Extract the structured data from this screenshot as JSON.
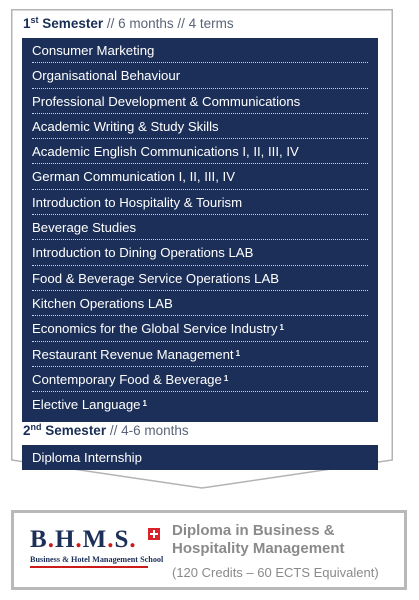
{
  "semester1": {
    "num": "1",
    "ord": "st",
    "word": "Semester",
    "meta": "// 6 months // 4 terms",
    "courses": [
      {
        "name": "Consumer Marketing",
        "note": ""
      },
      {
        "name": "Organisational Behaviour",
        "note": ""
      },
      {
        "name": "Professional Development & Communications",
        "note": ""
      },
      {
        "name": "Academic Writing & Study Skills",
        "note": ""
      },
      {
        "name": "Academic English Communications I, II, III, IV",
        "note": ""
      },
      {
        "name": "German Communication I, II, III, IV",
        "note": ""
      },
      {
        "name": "Introduction to Hospitality & Tourism",
        "note": ""
      },
      {
        "name": "Beverage Studies",
        "note": ""
      },
      {
        "name": "Introduction to Dining Operations LAB",
        "note": ""
      },
      {
        "name": "Food & Beverage Service Operations LAB",
        "note": ""
      },
      {
        "name": "Kitchen Operations LAB",
        "note": ""
      },
      {
        "name": "Economics for the Global Service Industry",
        "note": "1"
      },
      {
        "name": "Restaurant Revenue Management",
        "note": "1"
      },
      {
        "name": "Contemporary Food & Beverage",
        "note": "1"
      },
      {
        "name": "Elective Language",
        "note": "1"
      }
    ]
  },
  "semester2": {
    "num": "2",
    "ord": "nd",
    "word": "Semester",
    "meta": "// 4-6 months",
    "courses": [
      {
        "name": "Diploma Internship",
        "note": ""
      }
    ]
  },
  "footer": {
    "logo_text": "B.H.M.S.",
    "logo_subtitle": "Business & Hotel Management School",
    "diploma_title": "Diploma in Business & Hospitality Management",
    "credits": "(120 Credits – 60 ECTS Equivalent)"
  },
  "colors": {
    "navy": "#1c2f58",
    "frame_grey": "#b3b3b3",
    "swiss_red": "#d8232a"
  }
}
